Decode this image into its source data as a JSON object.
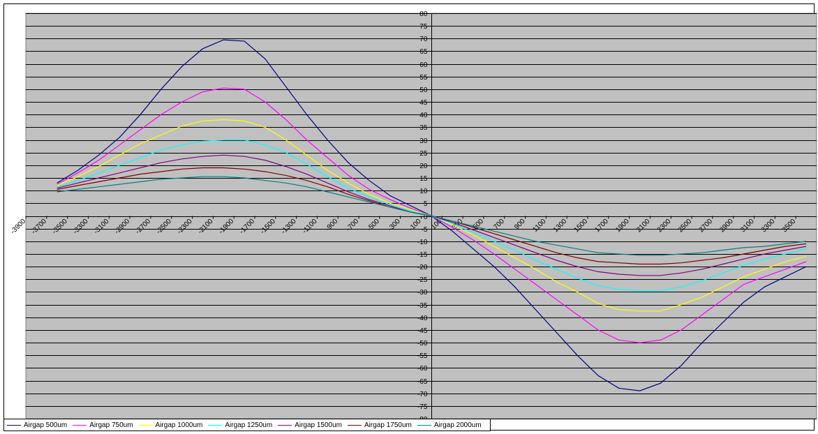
{
  "chart_data": {
    "type": "line",
    "title": "",
    "xlabel": "",
    "ylabel": "",
    "grid": true,
    "legend_position": "bottom",
    "plot_background": "#c0c0c0",
    "xlim": [
      -3900,
      3700
    ],
    "ylim": [
      -80,
      80
    ],
    "x_ticks": [
      -3900,
      -3700,
      -3500,
      -3300,
      -3100,
      -2900,
      -2700,
      -2500,
      -2300,
      -2100,
      -1900,
      -1700,
      -1500,
      -1300,
      -1100,
      -900,
      -700,
      -500,
      -300,
      -100,
      100,
      300,
      500,
      700,
      900,
      1100,
      1300,
      1500,
      1700,
      1900,
      2100,
      2300,
      2500,
      2700,
      2900,
      3100,
      3300,
      3500
    ],
    "y_ticks": [
      -80,
      -75,
      -70,
      -65,
      -60,
      -55,
      -50,
      -45,
      -40,
      -35,
      -30,
      -25,
      -20,
      -15,
      -10,
      -5,
      0,
      5,
      10,
      15,
      20,
      25,
      30,
      35,
      40,
      45,
      50,
      55,
      60,
      65,
      70,
      75,
      80
    ],
    "x": [
      -3600,
      -3400,
      -3200,
      -3000,
      -2800,
      -2600,
      -2400,
      -2200,
      -2000,
      -1800,
      -1600,
      -1400,
      -1200,
      -1000,
      -800,
      -600,
      -400,
      -200,
      0,
      200,
      400,
      600,
      800,
      1000,
      1200,
      1400,
      1600,
      1800,
      2000,
      2200,
      2400,
      2600,
      2800,
      3000,
      3200,
      3400,
      3600
    ],
    "series": [
      {
        "name": "Airgap 500um",
        "color": "#000080",
        "values": [
          13,
          18,
          24,
          31,
          40,
          50,
          59,
          66,
          69.5,
          69,
          62,
          51,
          40,
          30,
          21,
          14,
          8,
          4,
          0,
          -6,
          -13,
          -20,
          -28,
          -37,
          -46,
          -55,
          -63,
          -68,
          -69,
          -66,
          -59,
          -50,
          -42,
          -34,
          -28,
          -24,
          -20
        ]
      },
      {
        "name": "Airgap 750um",
        "color": "#ff00ff",
        "values": [
          12.5,
          17,
          22,
          28,
          34,
          40,
          45,
          49,
          50.5,
          50,
          45,
          38,
          30,
          23,
          16,
          10.5,
          6.5,
          3,
          0,
          -4.5,
          -9.5,
          -15,
          -21,
          -27,
          -33,
          -39,
          -45,
          -49,
          -50,
          -49,
          -45,
          -39,
          -33,
          -27,
          -24,
          -21,
          -18
        ]
      },
      {
        "name": "Airgap 1000um",
        "color": "#ffff00",
        "values": [
          12,
          15.5,
          19.5,
          24,
          28.5,
          32,
          35.5,
          37.5,
          38,
          37.5,
          35,
          30,
          24,
          18,
          13,
          8.5,
          5,
          2.5,
          0,
          -3.5,
          -7.5,
          -12,
          -16.5,
          -21,
          -26,
          -30,
          -34.5,
          -37,
          -37.5,
          -37.5,
          -35,
          -32,
          -28,
          -24,
          -21,
          -18,
          -16
        ]
      },
      {
        "name": "Airgap 1250um",
        "color": "#00ffff",
        "values": [
          11.5,
          14,
          17,
          20,
          23,
          26,
          28,
          29.5,
          30,
          30,
          28,
          25,
          20.5,
          15.5,
          11,
          7.5,
          4.5,
          2,
          0,
          -3,
          -6.5,
          -10,
          -13.5,
          -17.5,
          -21,
          -24.5,
          -27.5,
          -29,
          -29.5,
          -29.5,
          -28,
          -25.5,
          -22.5,
          -19.5,
          -17,
          -15,
          -13
        ]
      },
      {
        "name": "Airgap 1500um",
        "color": "#800080",
        "values": [
          11,
          13,
          15,
          17,
          19,
          21,
          22.5,
          23.5,
          24,
          23.5,
          22,
          19.5,
          16.5,
          13,
          9.5,
          6.5,
          4,
          1.5,
          0,
          -2.5,
          -5.5,
          -8.5,
          -11.5,
          -14.5,
          -17.5,
          -20,
          -22,
          -23,
          -23.5,
          -23.5,
          -22.5,
          -21,
          -19,
          -17,
          -15,
          -13.5,
          -12
        ]
      },
      {
        "name": "Airgap 1750um",
        "color": "#800000",
        "values": [
          10.5,
          12,
          13.5,
          15,
          16.5,
          17.5,
          18.5,
          19,
          19,
          18.5,
          17.5,
          16,
          14,
          11.5,
          8.5,
          6,
          3.5,
          1.5,
          0,
          -2,
          -4.5,
          -7,
          -9.5,
          -12,
          -14.5,
          -16.5,
          -18,
          -18.5,
          -19,
          -19,
          -18.5,
          -17.5,
          -16.5,
          -15,
          -13.5,
          -12,
          -11
        ]
      },
      {
        "name": "Airgap 2000um",
        "color": "#008080",
        "values": [
          9.5,
          10.5,
          11.5,
          12.5,
          13.5,
          14.5,
          15,
          15.5,
          15.5,
          15,
          14,
          13,
          11.5,
          9.5,
          7.5,
          5.5,
          3.5,
          1.5,
          0,
          -2,
          -4,
          -6,
          -8,
          -10,
          -11.5,
          -13,
          -14.5,
          -15,
          -15.5,
          -15.5,
          -15,
          -14.5,
          -13.5,
          -12.5,
          -12,
          -11,
          -10
        ]
      }
    ]
  }
}
